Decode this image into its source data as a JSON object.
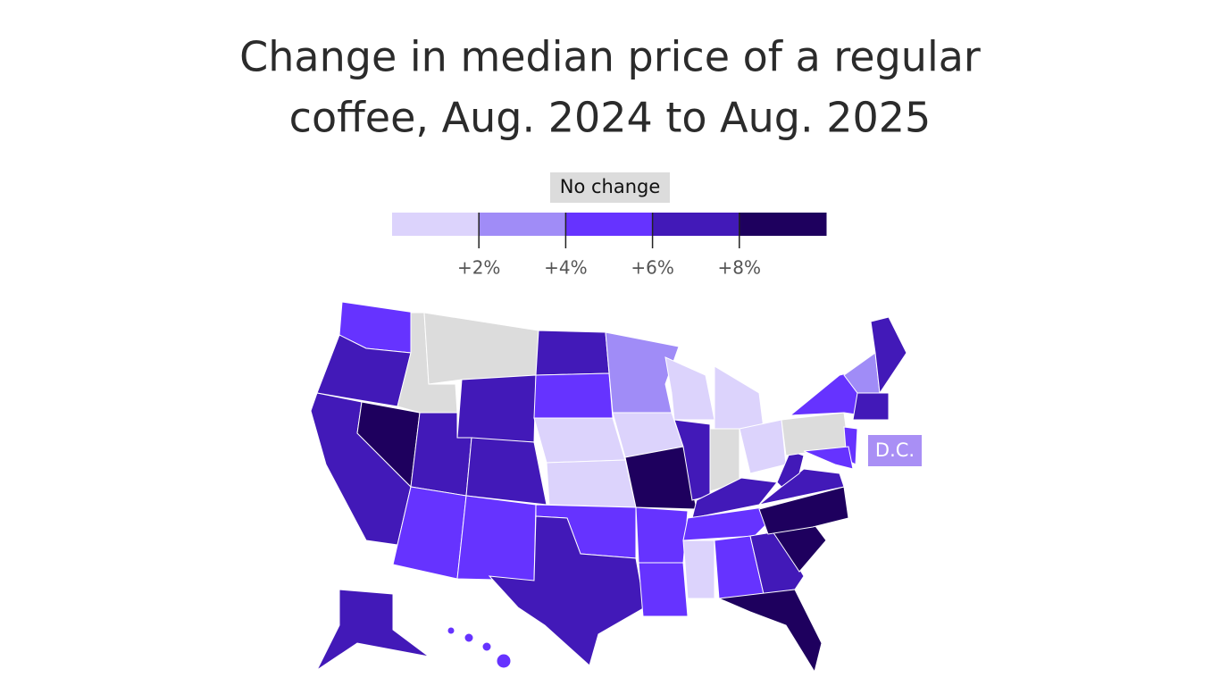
{
  "title_lines": [
    "Change in median price of a regular",
    "coffee, Aug. 2024 to Aug. 2025"
  ],
  "legend": {
    "no_change": {
      "label": "No change",
      "color": "#dcdcdc"
    },
    "colors": [
      "#dcd3fc",
      "#a08cf7",
      "#6633ff",
      "#4219b8",
      "#1e005e"
    ],
    "lim": [
      0,
      10
    ],
    "ticks": [
      {
        "value": 2,
        "label": "+2%"
      },
      {
        "value": 4,
        "label": "+4%"
      },
      {
        "value": 6,
        "label": "+6%"
      },
      {
        "value": 8,
        "label": "+8%"
      }
    ]
  },
  "callout": {
    "label": "D.C.",
    "color": "#a98ff5"
  }
}
